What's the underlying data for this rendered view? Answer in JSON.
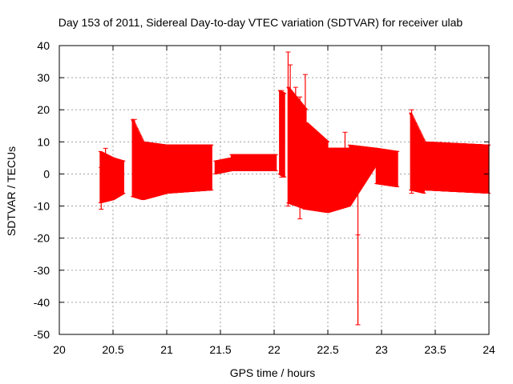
{
  "chart_data": {
    "type": "errorbar",
    "title": "Day 153 of 2011, Sidereal Day-to-day VTEC variation (SDTVAR) for receiver ulab",
    "xlabel": "GPS time / hours",
    "ylabel": "SDTVAR / TECUs",
    "xlim": [
      20,
      24
    ],
    "ylim": [
      -50,
      40
    ],
    "xticks": [
      20,
      20.5,
      21,
      21.5,
      22,
      22.5,
      23,
      23.5,
      24
    ],
    "xtick_labels": [
      "20",
      "20.5",
      "21",
      "21.5",
      "22",
      "22.5",
      "23",
      "23.5",
      "24"
    ],
    "yticks": [
      -50,
      -40,
      -30,
      -20,
      -10,
      0,
      10,
      20,
      30,
      40
    ],
    "ytick_labels": [
      "-50",
      "-40",
      "-30",
      "-20",
      "-10",
      "0",
      "10",
      "20",
      "30",
      "40"
    ],
    "grid": true,
    "series_color": "#ff0000",
    "segments": [
      {
        "x": [
          20.38,
          20.5
        ],
        "upper": [
          7,
          5
        ],
        "lower": [
          -9,
          -8
        ]
      },
      {
        "x": [
          20.5,
          20.6
        ],
        "upper": [
          5,
          4
        ],
        "lower": [
          -8,
          -6
        ]
      },
      {
        "x": [
          20.68,
          20.78
        ],
        "upper": [
          17,
          10
        ],
        "lower": [
          -7,
          -8
        ]
      },
      {
        "x": [
          20.78,
          21.0
        ],
        "upper": [
          10,
          9
        ],
        "lower": [
          -8,
          -6
        ]
      },
      {
        "x": [
          21.0,
          21.42
        ],
        "upper": [
          9,
          9
        ],
        "lower": [
          -6,
          -5
        ]
      },
      {
        "x": [
          21.45,
          21.6
        ],
        "upper": [
          4,
          5
        ],
        "lower": [
          0,
          1
        ]
      },
      {
        "x": [
          21.6,
          22.02
        ],
        "upper": [
          6,
          6
        ],
        "lower": [
          1,
          1
        ]
      },
      {
        "x": [
          22.05,
          22.1
        ],
        "upper": [
          26,
          25
        ],
        "lower": [
          0,
          -1
        ]
      },
      {
        "x": [
          22.13,
          22.3
        ],
        "upper": [
          27,
          20
        ],
        "lower": [
          -9,
          -11
        ]
      },
      {
        "x": [
          22.3,
          22.5
        ],
        "upper": [
          16,
          10
        ],
        "lower": [
          -11,
          -12
        ]
      },
      {
        "x": [
          22.5,
          22.7
        ],
        "upper": [
          8,
          8
        ],
        "lower": [
          -12,
          -10
        ]
      },
      {
        "x": [
          22.7,
          22.95
        ],
        "upper": [
          9,
          8
        ],
        "lower": [
          -10,
          3
        ]
      },
      {
        "x": [
          22.95,
          23.15
        ],
        "upper": [
          8,
          7
        ],
        "lower": [
          -3,
          -4
        ]
      },
      {
        "x": [
          23.27,
          23.4
        ],
        "upper": [
          19,
          10
        ],
        "lower": [
          -5,
          -6
        ]
      },
      {
        "x": [
          23.4,
          24.0
        ],
        "upper": [
          10,
          9
        ],
        "lower": [
          -5,
          -6
        ]
      }
    ],
    "spikes": [
      {
        "x": 20.39,
        "upper": 2,
        "lower": -11
      },
      {
        "x": 20.43,
        "upper": 8,
        "lower": -6
      },
      {
        "x": 20.7,
        "upper": 17,
        "lower": -7
      },
      {
        "x": 22.07,
        "upper": 26,
        "lower": -1
      },
      {
        "x": 22.13,
        "upper": 38,
        "lower": -10
      },
      {
        "x": 22.15,
        "upper": 34,
        "lower": 5
      },
      {
        "x": 22.2,
        "upper": 27,
        "lower": -6
      },
      {
        "x": 22.24,
        "upper": 24,
        "lower": -14
      },
      {
        "x": 22.29,
        "upper": 31,
        "lower": -11
      },
      {
        "x": 22.66,
        "upper": 13,
        "lower": -4
      },
      {
        "x": 22.78,
        "upper": 8,
        "lower": -47
      },
      {
        "x": 22.78,
        "upper": -19,
        "lower": -47
      },
      {
        "x": 23.28,
        "upper": 20,
        "lower": -6
      }
    ]
  }
}
